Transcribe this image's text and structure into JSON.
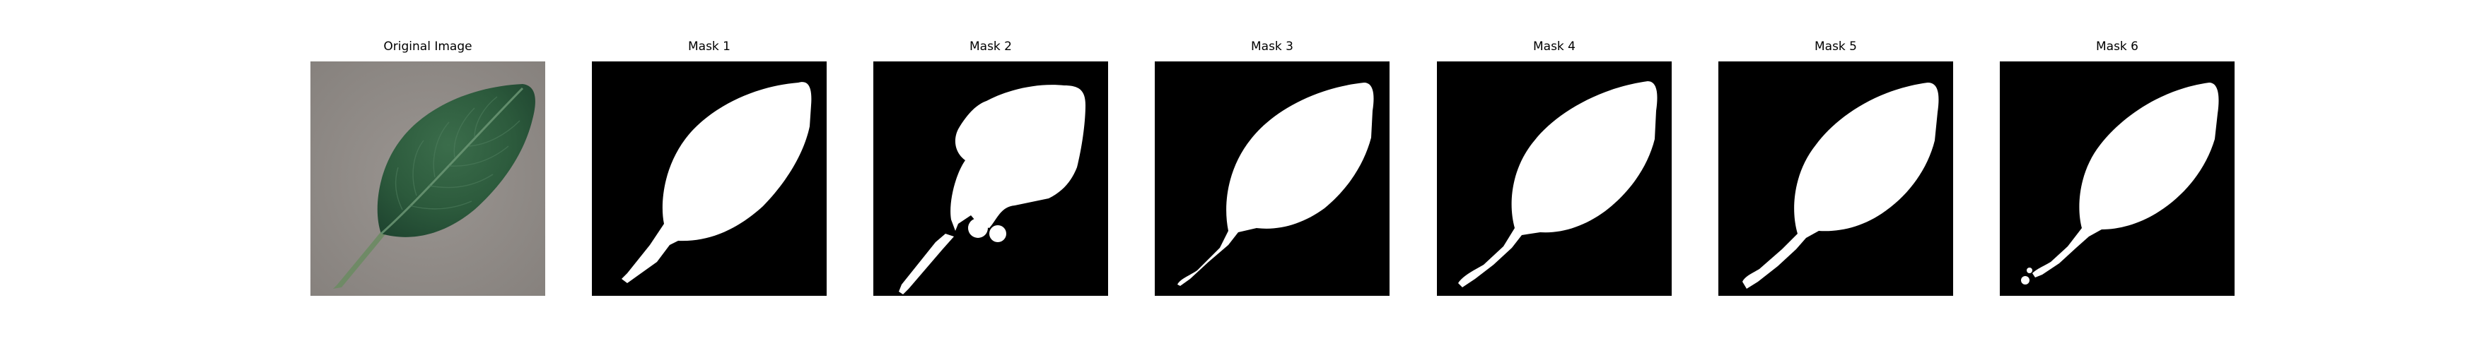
{
  "panels": [
    {
      "title": "Original Image"
    },
    {
      "title": "Mask 1"
    },
    {
      "title": "Mask 2"
    },
    {
      "title": "Mask 3"
    },
    {
      "title": "Mask 4"
    },
    {
      "title": "Mask 5"
    },
    {
      "title": "Mask 6"
    }
  ],
  "colors": {
    "mask_background": "#000000",
    "mask_foreground": "#ffffff",
    "photo_background": "#8f8a86",
    "leaf": "#2c5a3c"
  }
}
